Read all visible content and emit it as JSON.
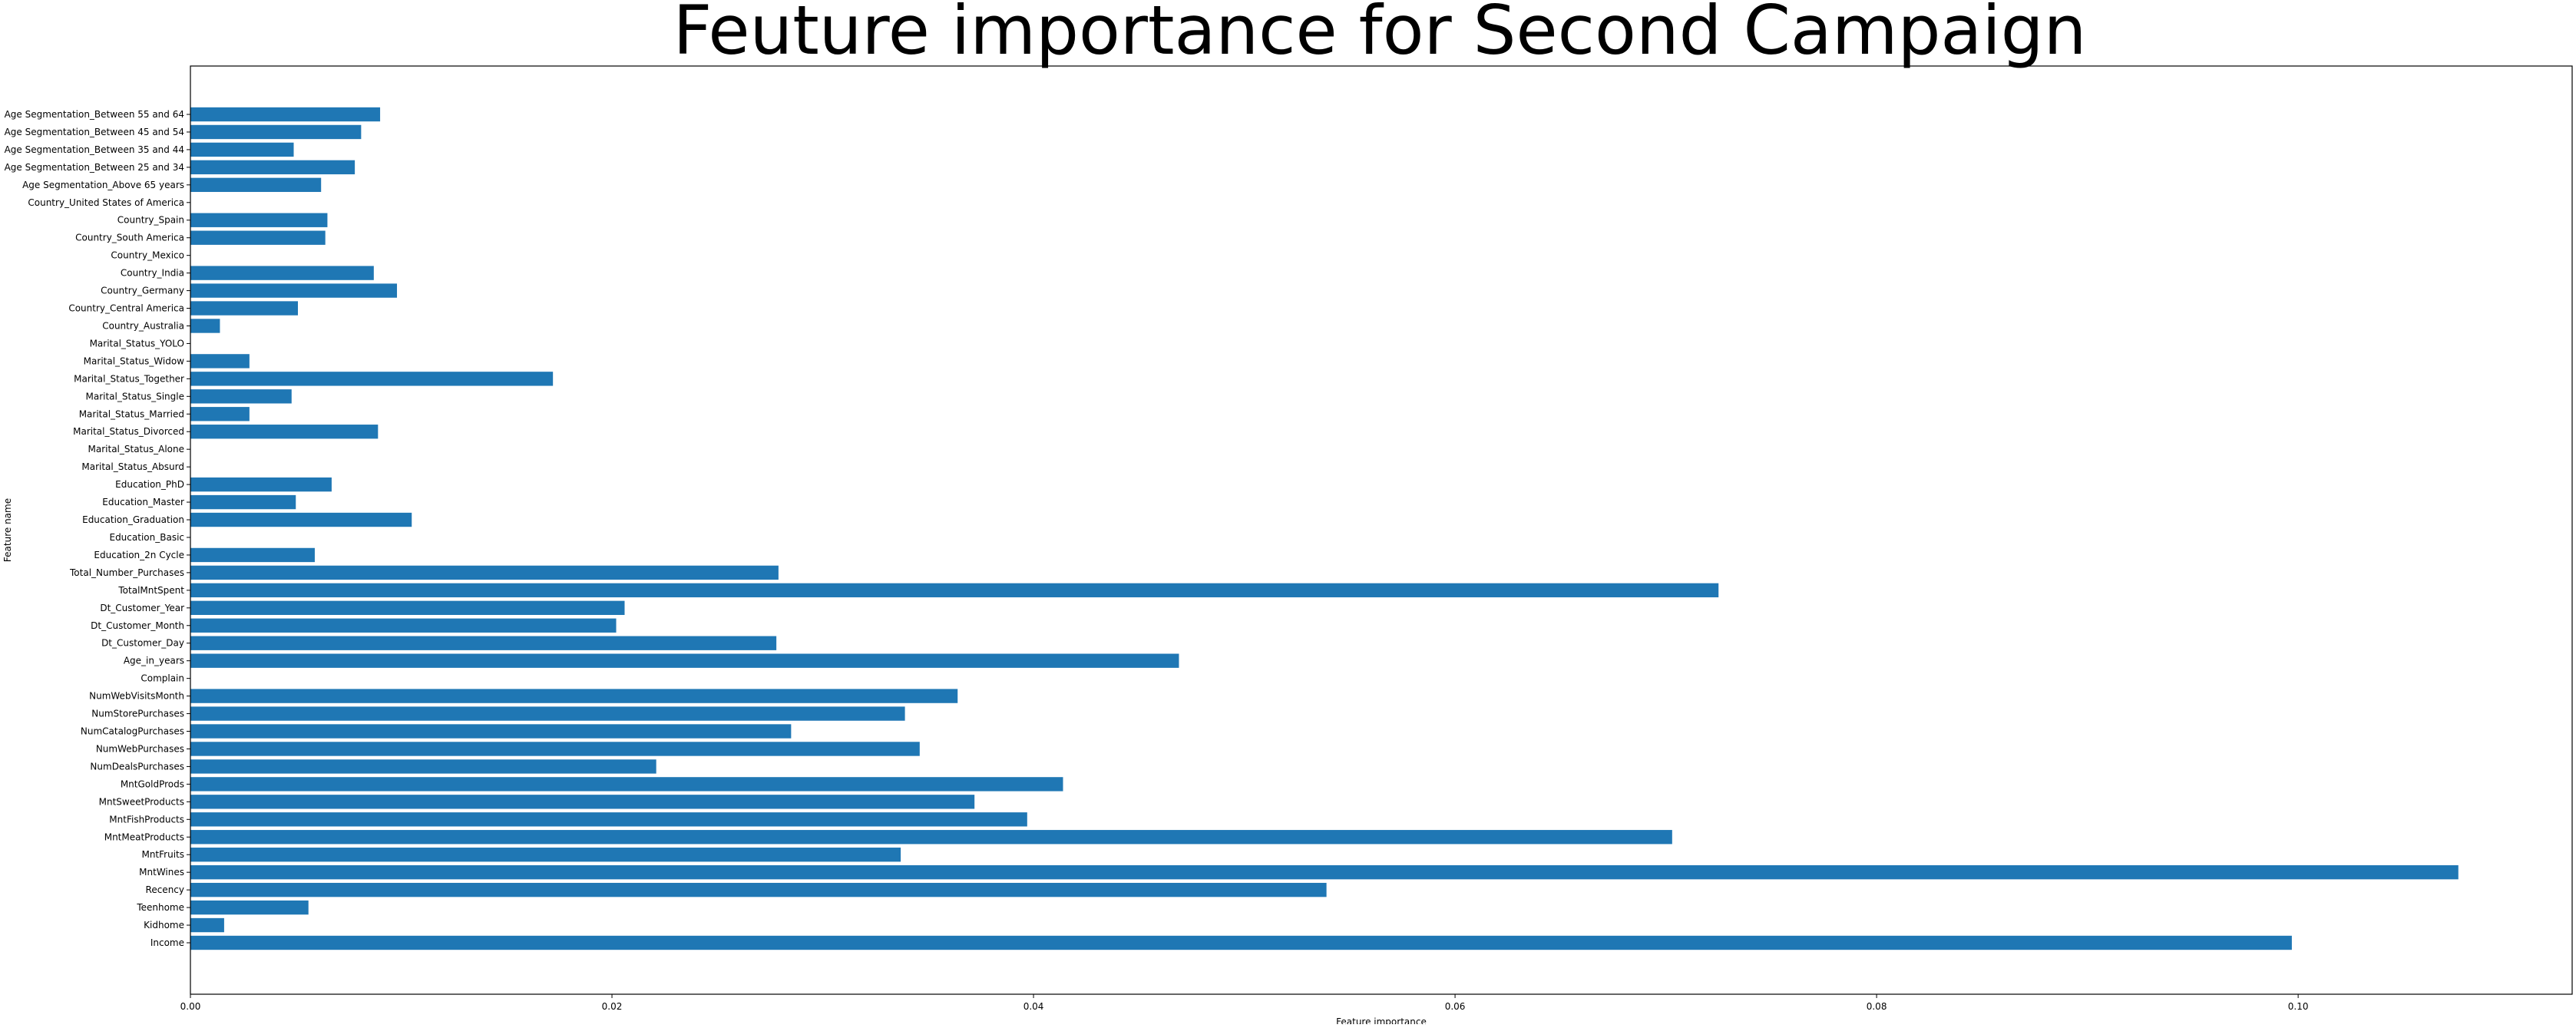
{
  "chart_data": {
    "type": "bar",
    "orientation": "horizontal",
    "title": "Feuture importance for Second Campaign",
    "xlabel": "Feature importance",
    "ylabel": "Feature name",
    "xlim": [
      0,
      0.113
    ],
    "xticks": [
      0.0,
      0.02,
      0.04,
      0.06,
      0.08,
      0.1
    ],
    "xtick_labels": [
      "0.00",
      "0.02",
      "0.04",
      "0.06",
      "0.08",
      "0.10"
    ],
    "grid": false,
    "bar_color": "#1f77b4",
    "categories": [
      "Income",
      "Kidhome",
      "Teenhome",
      "Recency",
      "MntWines",
      "MntFruits",
      "MntMeatProducts",
      "MntFishProducts",
      "MntSweetProducts",
      "MntGoldProds",
      "NumDealsPurchases",
      "NumWebPurchases",
      "NumCatalogPurchases",
      "NumStorePurchases",
      "NumWebVisitsMonth",
      "Complain",
      "Age_in_years",
      "Dt_Customer_Day",
      "Dt_Customer_Month",
      "Dt_Customer_Year",
      "TotalMntSpent",
      "Total_Number_Purchases",
      "Education_2n Cycle",
      "Education_Basic",
      "Education_Graduation",
      "Education_Master",
      "Education_PhD",
      "Marital_Status_Absurd",
      "Marital_Status_Alone",
      "Marital_Status_Divorced",
      "Marital_Status_Married",
      "Marital_Status_Single",
      "Marital_Status_Together",
      "Marital_Status_Widow",
      "Marital_Status_YOLO",
      "Country_Australia",
      "Country_Central America",
      "Country_Germany",
      "Country_India",
      "Country_Mexico",
      "Country_South America",
      "Country_Spain",
      "Country_United States of America",
      "Age Segmentation_Above 65 years",
      "Age Segmentation_Between 25 and 34",
      "Age Segmentation_Between 35 and 44",
      "Age Segmentation_Between 45 and 54",
      "Age Segmentation_Between 55 and 64"
    ],
    "values": [
      0.0997,
      0.0016,
      0.0056,
      0.0539,
      0.1076,
      0.0337,
      0.0703,
      0.0397,
      0.0372,
      0.0414,
      0.0221,
      0.0346,
      0.0285,
      0.0339,
      0.0364,
      0.0,
      0.0469,
      0.0278,
      0.0202,
      0.0206,
      0.0725,
      0.0279,
      0.0059,
      0.0,
      0.0105,
      0.005,
      0.0067,
      0.0,
      0.0,
      0.0089,
      0.0028,
      0.0048,
      0.0172,
      0.0028,
      0.0,
      0.0014,
      0.0051,
      0.0098,
      0.0087,
      0.0,
      0.0064,
      0.0065,
      0.0,
      0.0062,
      0.0078,
      0.0049,
      0.0081,
      0.009
    ]
  }
}
